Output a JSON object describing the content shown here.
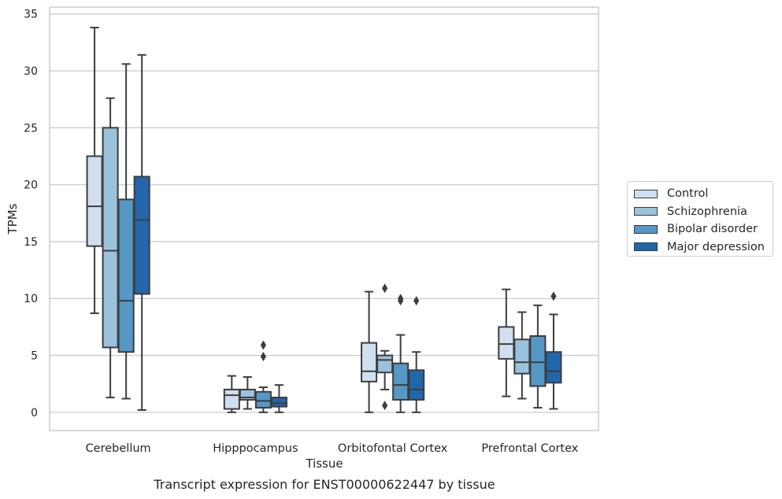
{
  "chart_data": {
    "type": "box",
    "title": "",
    "caption": "Transcript expression for ENST00000622447 by tissue",
    "xlabel": "Tissue",
    "ylabel": "TPMs",
    "ylim": [
      -1.6,
      35.6
    ],
    "yticks": [
      0,
      5,
      10,
      15,
      20,
      25,
      30,
      35
    ],
    "grid": "horizontal",
    "legend_position": "right",
    "categories": [
      "Cerebellum",
      "Hipppocampus",
      "Orbitofontal Cortex",
      "Prefrontal Cortex"
    ],
    "series": [
      {
        "name": "Control",
        "color": "#d0e0f1",
        "boxes": [
          {
            "whislo": 8.7,
            "q1": 14.6,
            "med": 18.1,
            "q3": 22.5,
            "whishi": 33.8,
            "fliers": []
          },
          {
            "whislo": 0.0,
            "q1": 0.3,
            "med": 1.5,
            "q3": 2.0,
            "whishi": 3.2,
            "fliers": []
          },
          {
            "whislo": 0.0,
            "q1": 2.7,
            "med": 3.6,
            "q3": 6.1,
            "whishi": 10.6,
            "fliers": []
          },
          {
            "whislo": 1.4,
            "q1": 4.7,
            "med": 6.0,
            "q3": 7.5,
            "whishi": 10.8,
            "fliers": []
          }
        ]
      },
      {
        "name": "Schizophrenia",
        "color": "#9ac2dc",
        "boxes": [
          {
            "whislo": 1.3,
            "q1": 5.7,
            "med": 14.2,
            "q3": 25.0,
            "whishi": 27.6,
            "fliers": []
          },
          {
            "whislo": 0.3,
            "q1": 1.1,
            "med": 1.3,
            "q3": 2.0,
            "whishi": 3.1,
            "fliers": []
          },
          {
            "whislo": 2.0,
            "q1": 3.5,
            "med": 4.6,
            "q3": 5.0,
            "whishi": 5.4,
            "fliers": [
              0.6,
              10.9
            ]
          },
          {
            "whislo": 1.2,
            "q1": 3.4,
            "med": 4.4,
            "q3": 6.4,
            "whishi": 8.8,
            "fliers": []
          }
        ]
      },
      {
        "name": "Bipolar disorder",
        "color": "#5597c5",
        "boxes": [
          {
            "whislo": 1.2,
            "q1": 5.3,
            "med": 9.8,
            "q3": 18.7,
            "whishi": 30.6,
            "fliers": []
          },
          {
            "whislo": 0.0,
            "q1": 0.4,
            "med": 1.0,
            "q3": 1.8,
            "whishi": 2.2,
            "fliers": [
              4.9,
              5.9
            ]
          },
          {
            "whislo": 0.0,
            "q1": 1.1,
            "med": 2.4,
            "q3": 4.3,
            "whishi": 6.8,
            "fliers": [
              9.8,
              10.0
            ]
          },
          {
            "whislo": 0.4,
            "q1": 2.3,
            "med": 4.4,
            "q3": 6.7,
            "whishi": 9.4,
            "fliers": []
          }
        ]
      },
      {
        "name": "Major depression",
        "color": "#2267ab",
        "boxes": [
          {
            "whislo": 0.2,
            "q1": 10.4,
            "med": 16.9,
            "q3": 20.7,
            "whishi": 31.4,
            "fliers": []
          },
          {
            "whislo": 0.0,
            "q1": 0.5,
            "med": 0.8,
            "q3": 1.3,
            "whishi": 2.4,
            "fliers": []
          },
          {
            "whislo": 0.0,
            "q1": 1.1,
            "med": 2.0,
            "q3": 3.7,
            "whishi": 5.3,
            "fliers": [
              9.8
            ]
          },
          {
            "whislo": 0.3,
            "q1": 2.6,
            "med": 3.6,
            "q3": 5.3,
            "whishi": 8.6,
            "fliers": [
              10.2
            ]
          }
        ]
      }
    ]
  }
}
